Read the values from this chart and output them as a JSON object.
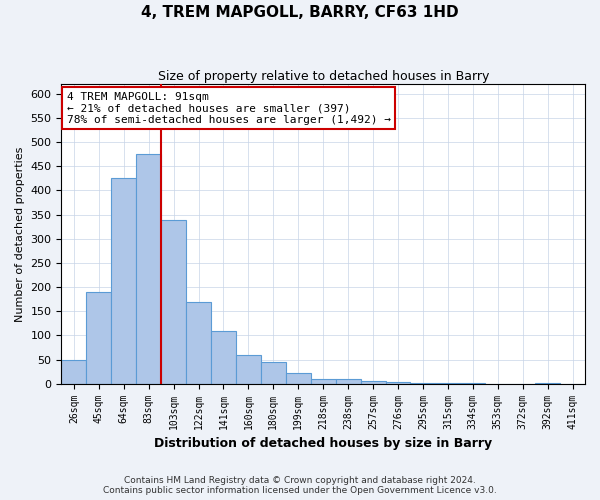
{
  "title1": "4, TREM MAPGOLL, BARRY, CF63 1HD",
  "title2": "Size of property relative to detached houses in Barry",
  "xlabel": "Distribution of detached houses by size in Barry",
  "ylabel": "Number of detached properties",
  "bar_labels": [
    "26sqm",
    "45sqm",
    "64sqm",
    "83sqm",
    "103sqm",
    "122sqm",
    "141sqm",
    "160sqm",
    "180sqm",
    "199sqm",
    "218sqm",
    "238sqm",
    "257sqm",
    "276sqm",
    "295sqm",
    "315sqm",
    "334sqm",
    "353sqm",
    "372sqm",
    "392sqm",
    "411sqm"
  ],
  "bar_values": [
    50,
    190,
    425,
    475,
    338,
    170,
    110,
    60,
    45,
    22,
    10,
    10,
    5,
    4,
    2,
    1,
    1,
    0,
    0,
    1,
    0
  ],
  "bar_color": "#aec6e8",
  "bar_edge_color": "#5b9bd5",
  "vline_x_idx": 3,
  "vline_color": "#cc0000",
  "annotation_line1": "4 TREM MAPGOLL: 91sqm",
  "annotation_line2": "← 21% of detached houses are smaller (397)",
  "annotation_line3": "78% of semi-detached houses are larger (1,492) →",
  "annotation_box_color": "#ffffff",
  "annotation_box_edge_color": "#cc0000",
  "ylim": [
    0,
    620
  ],
  "yticks": [
    0,
    50,
    100,
    150,
    200,
    250,
    300,
    350,
    400,
    450,
    500,
    550,
    600
  ],
  "footer": "Contains HM Land Registry data © Crown copyright and database right 2024.\nContains public sector information licensed under the Open Government Licence v3.0.",
  "bg_color": "#eef2f8",
  "plot_bg_color": "#ffffff",
  "grid_color": "#c8d4e8"
}
